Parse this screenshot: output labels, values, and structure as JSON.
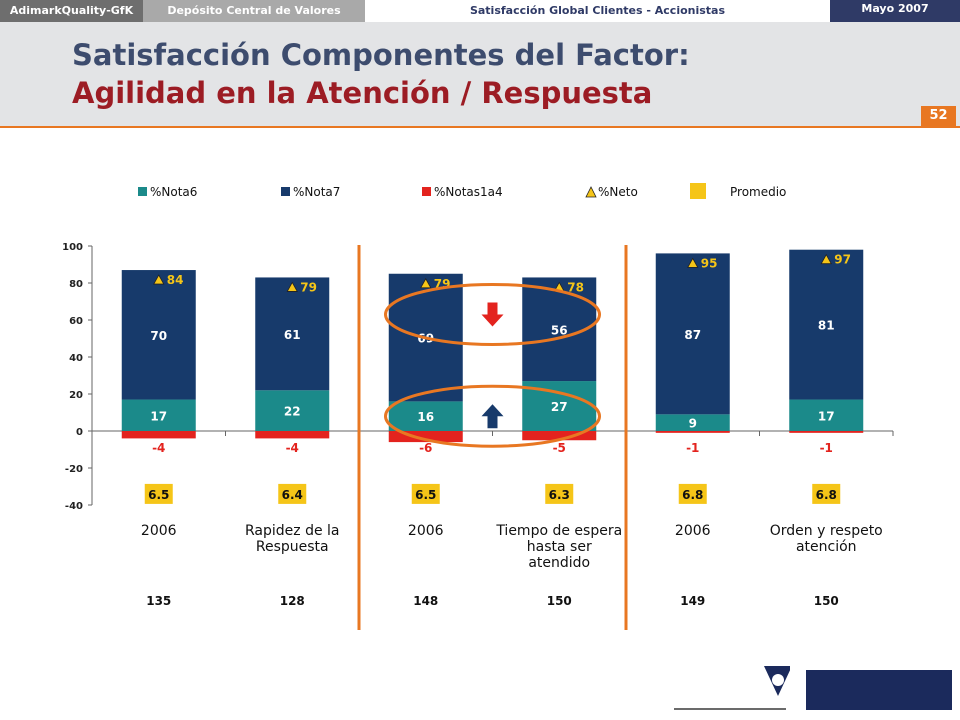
{
  "header": {
    "brand": "AdimarkQuality-GfK",
    "client": "Depósito Central de Valores",
    "study": "Satisfacción Global Clientes - Accionistas",
    "date": "Mayo 2007",
    "title_line1": "Satisfacción Componentes del Factor:",
    "title_line2": "Agilidad en la Atención / Respuesta",
    "page_number": "52"
  },
  "legend": [
    "%Nota6",
    "%Nota7",
    "%Notas1a4",
    "%Neto",
    "Promedio"
  ],
  "chart_data": {
    "type": "bar",
    "stacked": true,
    "categories": [
      "2006",
      "Rapidez de la Respuesta",
      "2006",
      "Tiempo de espera hasta ser atendido",
      "2006",
      "Orden y respeto atención"
    ],
    "category_lines": [
      [
        "2006"
      ],
      [
        "Rapidez de la",
        "Respuesta"
      ],
      [
        "2006"
      ],
      [
        "Tiempo de espera",
        "hasta ser",
        "atendido"
      ],
      [
        "2006"
      ],
      [
        "Orden y respeto",
        "atención"
      ]
    ],
    "series": [
      {
        "name": "%Nota6",
        "values": [
          17,
          22,
          16,
          27,
          9,
          17
        ],
        "color": "#1b8a8a"
      },
      {
        "name": "%Nota7",
        "values": [
          70,
          61,
          69,
          56,
          87,
          81
        ],
        "color": "#173a6b"
      },
      {
        "name": "%Notas1a4",
        "values": [
          -4,
          -4,
          -6,
          -5,
          -1,
          -1
        ],
        "color": "#e3231e"
      }
    ],
    "neto": {
      "name": "%Neto",
      "values": [
        84,
        79,
        79,
        78,
        95,
        97
      ]
    },
    "promedio": {
      "name": "Promedio",
      "values": [
        "6.5",
        "6.4",
        "6.5",
        "6.3",
        "6.8",
        "6.8"
      ],
      "color": "#f5c518"
    },
    "base_n": [
      "135",
      "128",
      "148",
      "150",
      "149",
      "150"
    ],
    "yticks": [
      100,
      80,
      60,
      40,
      20,
      0,
      -20,
      -40
    ],
    "ylim": [
      -40,
      100
    ],
    "annotations": {
      "down_arrow_color": "#e3231e",
      "up_arrow_color": "#173a6b",
      "ellipse_color": "#e87722"
    }
  }
}
